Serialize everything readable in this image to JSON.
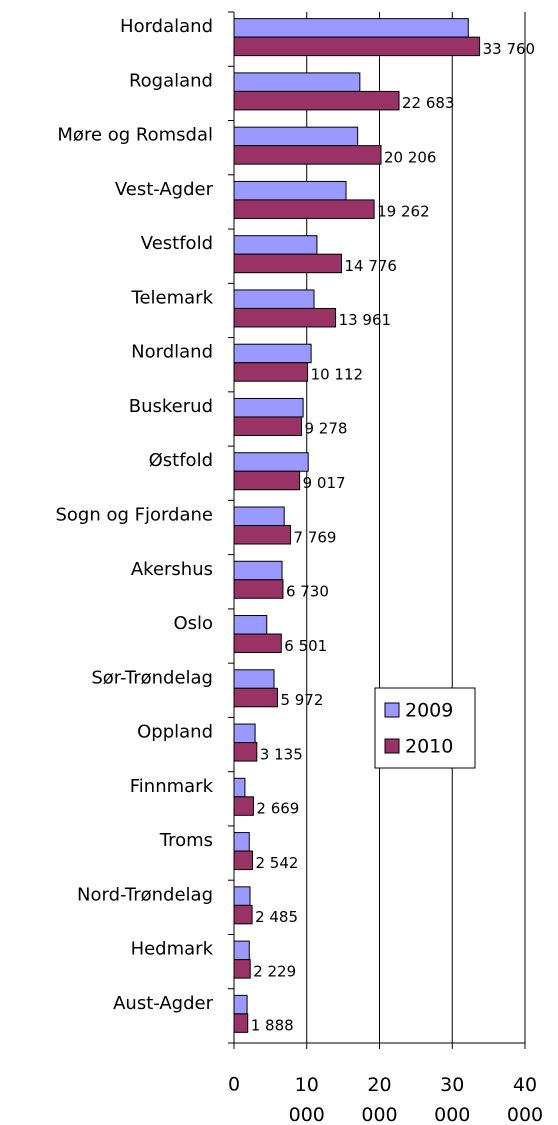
{
  "chart_data": {
    "type": "bar",
    "orientation": "horizontal",
    "categories": [
      "Hordaland",
      "Rogaland",
      "Møre og Romsdal",
      "Vest-Agder",
      "Vestfold",
      "Telemark",
      "Nordland",
      "Buskerud",
      "Østfold",
      "Sogn og Fjordane",
      "Akershus",
      "Oslo",
      "Sør-Trøndelag",
      "Oppland",
      "Finnmark",
      "Troms",
      "Nord-Trøndelag",
      "Hedmark",
      "Aust-Agder"
    ],
    "series": [
      {
        "name": "2009",
        "color": "#9999ff",
        "values": [
          32200,
          17300,
          17000,
          15400,
          11400,
          11000,
          10600,
          9500,
          10200,
          6900,
          6600,
          4500,
          5500,
          2900,
          1500,
          2100,
          2200,
          2100,
          1800
        ]
      },
      {
        "name": "2010",
        "color": "#993366",
        "values": [
          33760,
          22683,
          20206,
          19262,
          14776,
          13961,
          10112,
          9278,
          9017,
          7769,
          6730,
          6501,
          5972,
          3135,
          2669,
          2542,
          2485,
          2229,
          1888
        ],
        "value_labels": [
          "33 760",
          "22 683",
          "20 206",
          "19 262",
          "14 776",
          "13 961",
          "10 112",
          "9 278",
          "9 017",
          "7 769",
          "6 730",
          "6 501",
          "5 972",
          "3 135",
          "2 669",
          "2 542",
          "2 485",
          "2 229",
          "1 888"
        ]
      }
    ],
    "xlim": [
      0,
      40000
    ],
    "xticks": [
      0,
      {
        "value": 10000,
        "label": "10 000"
      },
      {
        "value": 20000,
        "label": "20 000"
      },
      {
        "value": 30000,
        "label": "30 000"
      },
      {
        "value": 40000,
        "label": "40 000"
      }
    ],
    "grid": true,
    "legend": "right"
  }
}
